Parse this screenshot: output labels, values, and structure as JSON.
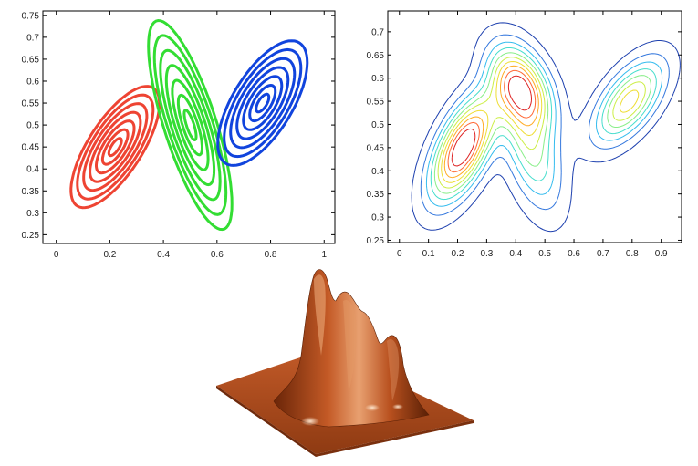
{
  "chart_data": [
    {
      "type": "contour",
      "title": "",
      "xlabel": "",
      "ylabel": "",
      "xlim": [
        -0.05,
        1.04
      ],
      "ylim": [
        0.23,
        0.76
      ],
      "xticks": [
        0,
        0.2,
        0.4,
        0.6,
        0.8,
        1
      ],
      "xtick_labels": [
        "0",
        "0.2",
        "0.4",
        "0.6",
        "0.8",
        "1"
      ],
      "yticks": [
        0.25,
        0.3,
        0.35,
        0.4,
        0.45,
        0.5,
        0.55,
        0.6,
        0.65,
        0.7,
        0.75
      ],
      "ytick_labels": [
        "0.25",
        "0.3",
        "0.35",
        "0.4",
        "0.45",
        "0.5",
        "0.55",
        "0.6",
        "0.65",
        "0.7",
        "0.75"
      ],
      "grid": false,
      "series": [
        {
          "color": "#ee4433",
          "center": [
            0.22,
            0.45
          ],
          "semi_axes_largest": [
            0.2,
            0.08
          ],
          "angle_deg": 38,
          "levels": 7
        },
        {
          "color": "#33dd33",
          "center": [
            0.5,
            0.5
          ],
          "semi_axes_largest": [
            0.27,
            0.09
          ],
          "angle_deg": -60,
          "levels": 7
        },
        {
          "color": "#1144dd",
          "center": [
            0.77,
            0.55
          ],
          "semi_axes_largest": [
            0.2,
            0.09
          ],
          "angle_deg": 38,
          "levels": 7
        }
      ]
    },
    {
      "type": "contour",
      "title": "",
      "xlabel": "",
      "ylabel": "",
      "xlim": [
        -0.04,
        0.97
      ],
      "ylim": [
        0.245,
        0.745
      ],
      "xticks": [
        0,
        0.1,
        0.2,
        0.3,
        0.4,
        0.5,
        0.6,
        0.7,
        0.8,
        0.9
      ],
      "xtick_labels": [
        "0",
        "0.1",
        "0.2",
        "0.3",
        "0.4",
        "0.5",
        "0.6",
        "0.7",
        "0.8",
        "0.9"
      ],
      "yticks": [
        0.25,
        0.3,
        0.35,
        0.4,
        0.45,
        0.5,
        0.55,
        0.6,
        0.65,
        0.7
      ],
      "ytick_labels": [
        "0.25",
        "0.3",
        "0.35",
        "0.4",
        "0.45",
        "0.5",
        "0.55",
        "0.6",
        "0.65",
        "0.7"
      ],
      "grid": false,
      "components": [
        {
          "center": [
            0.22,
            0.45
          ],
          "sigma": [
            0.075,
            0.075
          ],
          "rho": 0.6,
          "weight": 1.0
        },
        {
          "center": [
            0.42,
            0.58
          ],
          "sigma": [
            0.07,
            0.06
          ],
          "rho": -0.4,
          "weight": 0.8
        },
        {
          "center": [
            0.45,
            0.45
          ],
          "sigma": [
            0.07,
            0.09
          ],
          "rho": -0.5,
          "weight": 0.45
        },
        {
          "center": [
            0.79,
            0.55
          ],
          "sigma": [
            0.08,
            0.06
          ],
          "rho": 0.6,
          "weight": 0.65
        }
      ],
      "level_colors": [
        "#1c3fae",
        "#3377dd",
        "#33bbee",
        "#44ddcc",
        "#88ee88",
        "#ccee44",
        "#eedd33",
        "#ffaa22",
        "#ff6633",
        "#dd2222"
      ]
    },
    {
      "type": "surface",
      "title": "",
      "color": "#b34a1c",
      "peaks": [
        {
          "pos": [
            0.0,
            -0.5
          ],
          "height": 1.0,
          "width": 0.08
        },
        {
          "pos": [
            0.28,
            -0.15
          ],
          "height": 0.62,
          "width": 0.12
        },
        {
          "pos": [
            0.55,
            0.35
          ],
          "height": 0.42,
          "width": 0.1
        }
      ]
    }
  ]
}
